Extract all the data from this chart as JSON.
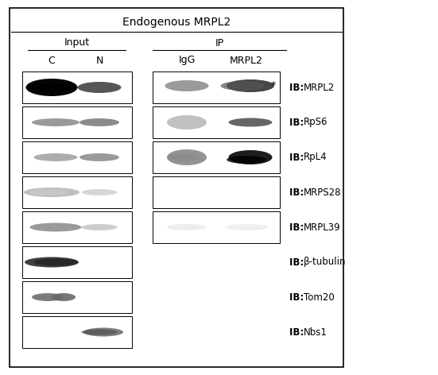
{
  "title": "Endogenous MRPL2",
  "header_input": "Input",
  "header_ip": "IP",
  "col_labels": [
    "C",
    "N",
    "IgG",
    "MRPL2"
  ],
  "row_labels": [
    "IB: MRPL2",
    "IB: RpS6",
    "IB: RpL4",
    "IB: MRPS28",
    "IB: MRPL39",
    "IB: β-tubulin",
    "IB: Tom20",
    "IB: Nbs1"
  ],
  "fig_bg": "#ffffff",
  "border_color": "#000000",
  "band_color_dark": "#111111",
  "band_color_mid": "#666666",
  "band_color_light": "#aaaaaa",
  "band_color_very_light": "#cccccc",
  "asterisk": "*"
}
